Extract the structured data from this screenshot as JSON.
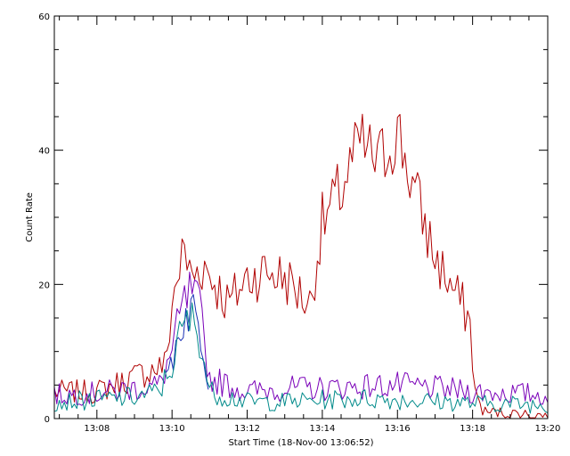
{
  "chart_data": {
    "type": "line",
    "title": "",
    "xlabel": "Start Time (18-Nov-00 13:06:52)",
    "ylabel": "Count Rate",
    "xlim": [
      "13:06:52",
      "13:20:00"
    ],
    "ylim": [
      0,
      60
    ],
    "x_tick_labels": [
      "13:08",
      "13:10",
      "13:12",
      "13:14",
      "13:16",
      "13:18",
      "13:20"
    ],
    "y_tick_labels": [
      "0",
      "20",
      "40",
      "60"
    ],
    "grid": false,
    "legend": "none",
    "sample_interval_seconds": 4,
    "series": [
      {
        "color": "#b00000",
        "keypoints": [
          [
            "13:06:52",
            4
          ],
          [
            "13:08:00",
            4
          ],
          [
            "13:08:40",
            5.5
          ],
          [
            "13:09:20",
            7
          ],
          [
            "13:09:50",
            8
          ],
          [
            "13:10:00",
            17
          ],
          [
            "13:10:10",
            22
          ],
          [
            "13:10:20",
            25
          ],
          [
            "13:10:30",
            21
          ],
          [
            "13:10:50",
            23
          ],
          [
            "13:11:10",
            20
          ],
          [
            "13:11:30",
            17
          ],
          [
            "13:12:00",
            21
          ],
          [
            "13:12:30",
            22
          ],
          [
            "13:13:00",
            21
          ],
          [
            "13:13:20",
            19
          ],
          [
            "13:13:40",
            17
          ],
          [
            "13:14:00",
            29
          ],
          [
            "13:14:30",
            34
          ],
          [
            "13:15:00",
            41
          ],
          [
            "13:15:30",
            38
          ],
          [
            "13:16:00",
            43
          ],
          [
            "13:16:30",
            33
          ],
          [
            "13:17:00",
            24
          ],
          [
            "13:17:30",
            19
          ],
          [
            "13:17:55",
            15
          ],
          [
            "13:18:05",
            3
          ],
          [
            "13:18:20",
            1
          ],
          [
            "13:19:00",
            0.8
          ],
          [
            "13:20:00",
            0.5
          ]
        ]
      },
      {
        "color": "#7a00b8",
        "keypoints": [
          [
            "13:06:52",
            3.5
          ],
          [
            "13:08:00",
            3.8
          ],
          [
            "13:09:00",
            4.5
          ],
          [
            "13:09:40",
            5
          ],
          [
            "13:10:00",
            10
          ],
          [
            "13:10:15",
            16
          ],
          [
            "13:10:30",
            19
          ],
          [
            "13:10:45",
            16
          ],
          [
            "13:11:00",
            6
          ],
          [
            "13:12:00",
            4
          ],
          [
            "13:13:00",
            4.5
          ],
          [
            "13:14:00",
            4.5
          ],
          [
            "13:15:00",
            4.8
          ],
          [
            "13:16:00",
            5
          ],
          [
            "13:17:00",
            4.5
          ],
          [
            "13:18:00",
            4
          ],
          [
            "13:19:00",
            3.8
          ],
          [
            "13:20:00",
            3.5
          ]
        ]
      },
      {
        "color": "#1a2fb5",
        "keypoints": [
          [
            "13:09:50",
            5
          ],
          [
            "13:10:00",
            9
          ],
          [
            "13:10:15",
            14
          ],
          [
            "13:10:30",
            17
          ],
          [
            "13:10:45",
            13
          ],
          [
            "13:11:00",
            5
          ]
        ]
      },
      {
        "color": "#008a8a",
        "keypoints": [
          [
            "13:06:52",
            2.5
          ],
          [
            "13:08:00",
            2.8
          ],
          [
            "13:09:00",
            3.2
          ],
          [
            "13:09:40",
            4
          ],
          [
            "13:10:00",
            8
          ],
          [
            "13:10:15",
            13
          ],
          [
            "13:10:30",
            15
          ],
          [
            "13:10:45",
            12
          ],
          [
            "13:11:00",
            4
          ],
          [
            "13:12:00",
            2.5
          ],
          [
            "13:13:00",
            2.5
          ],
          [
            "13:14:00",
            2.8
          ],
          [
            "13:15:00",
            3
          ],
          [
            "13:16:00",
            2.8
          ],
          [
            "13:17:00",
            2.6
          ],
          [
            "13:18:00",
            2.3
          ],
          [
            "13:19:00",
            2.2
          ],
          [
            "13:20:00",
            2
          ]
        ]
      }
    ]
  }
}
